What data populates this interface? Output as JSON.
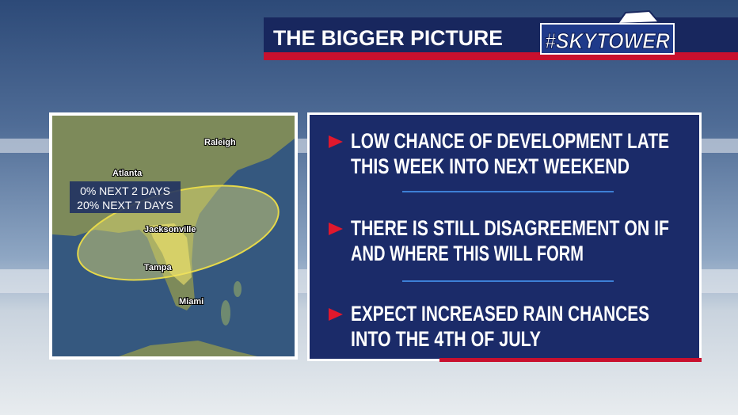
{
  "header": {
    "title": "THE BIGGER PICTURE",
    "brand": "#SKYTOWER"
  },
  "map": {
    "cities": [
      "Raleigh",
      "Atlanta",
      "Jacksonville",
      "Tampa",
      "Miami"
    ],
    "outlook": [
      "0% NEXT 2 DAYS",
      "20% NEXT 7 DAYS"
    ]
  },
  "bullets": [
    [
      "LOW CHANCE OF DEVELOPMENT LATE",
      "THIS WEEK INTO NEXT WEEKEND"
    ],
    [
      "THERE IS STILL DISAGREEMENT ON IF",
      "AND WHERE THIS WILL FORM"
    ],
    [
      "EXPECT INCREASED RAIN CHANCES",
      "INTO THE 4TH OF JULY"
    ]
  ]
}
